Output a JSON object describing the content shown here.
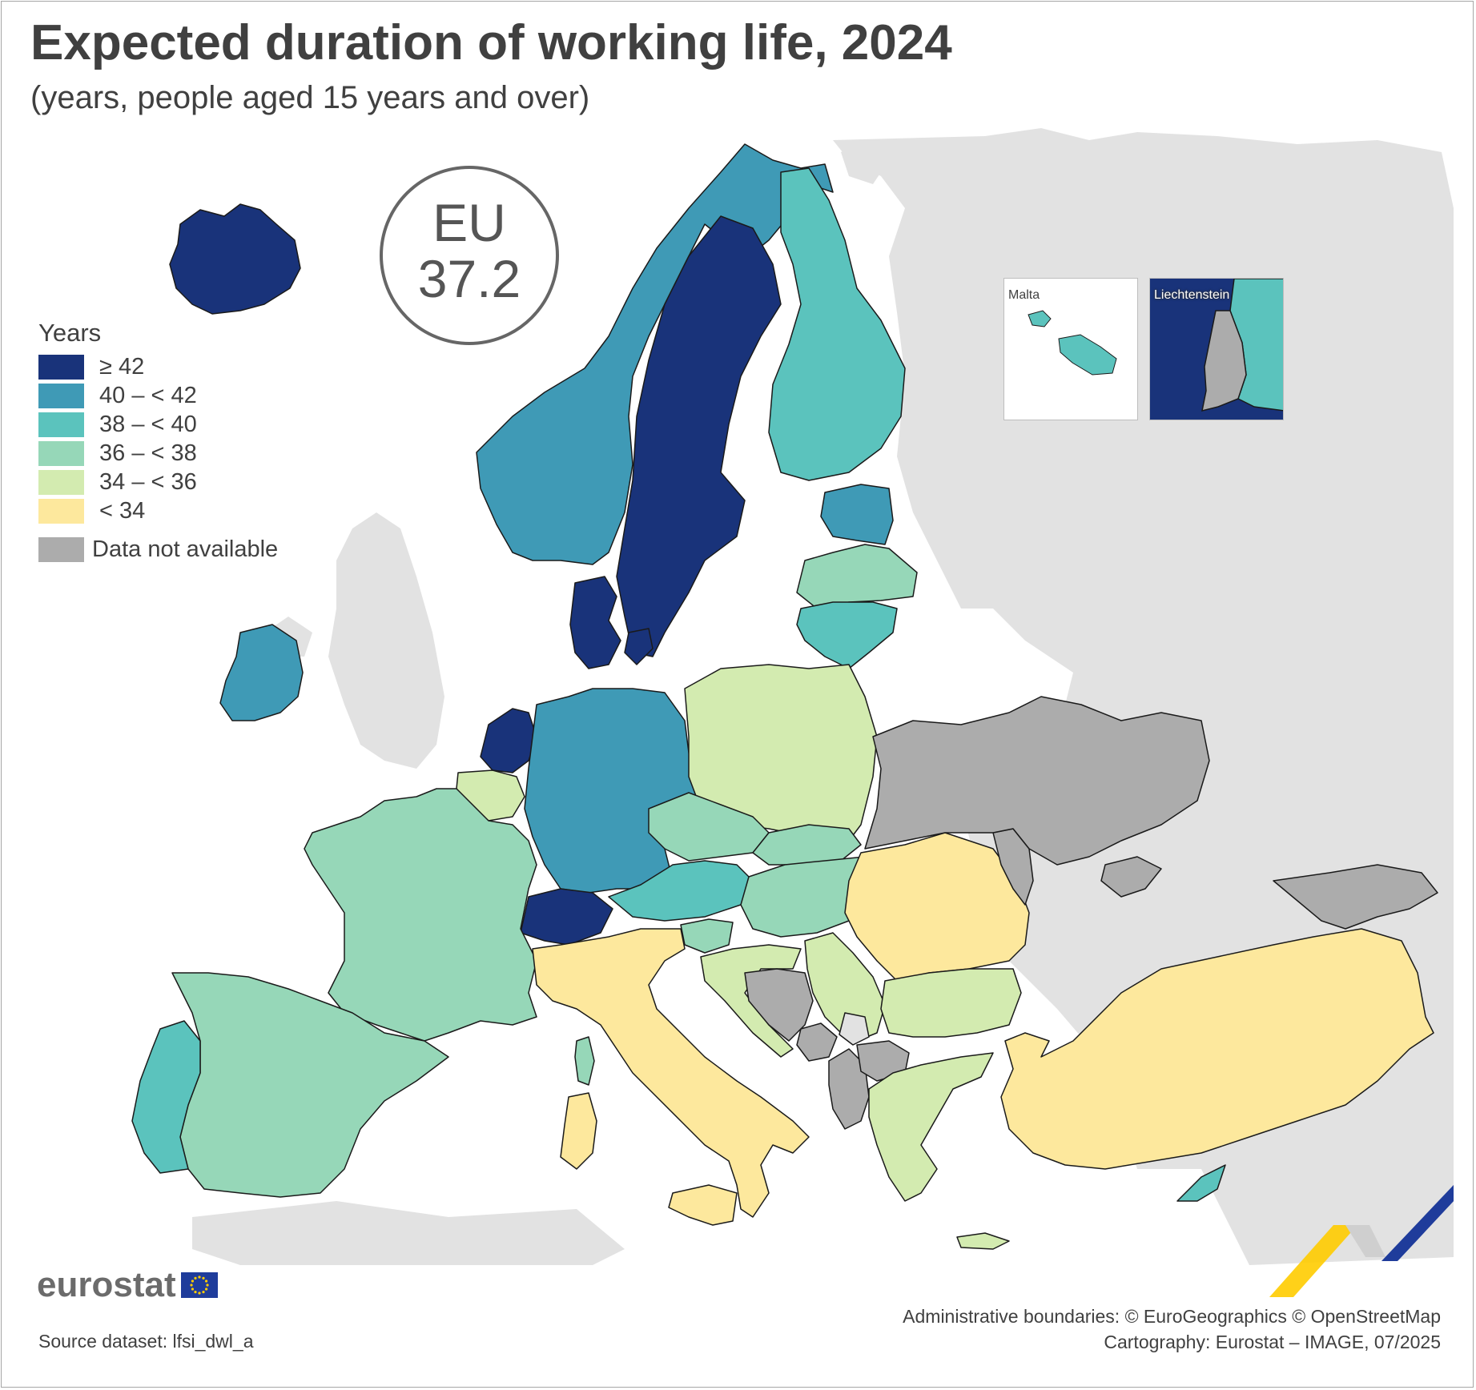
{
  "title": "Expected duration of working life, 2024",
  "subtitle": "(years, people aged 15 years and over)",
  "eu_badge": {
    "label": "EU",
    "value": "37.2"
  },
  "legend": {
    "title": "Years",
    "classes": [
      {
        "label": "≥ 42",
        "color": "#19337a"
      },
      {
        "label": "40 – < 42",
        "color": "#3f9ab6"
      },
      {
        "label": "38 – < 40",
        "color": "#5bc3bd"
      },
      {
        "label": "36 – < 38",
        "color": "#96d7b8"
      },
      {
        "label": "34 – < 36",
        "color": "#d3ebb0"
      },
      {
        "label": "< 34",
        "color": "#fde89d"
      }
    ],
    "not_available": {
      "label": "Data not available",
      "color": "#acacac"
    }
  },
  "colors": {
    "non_reporting": "#e2e2e2",
    "sea": "#ffffff",
    "border": "#1a1a1a"
  },
  "countries": [
    {
      "name": "Iceland",
      "class": "≥ 42"
    },
    {
      "name": "Sweden",
      "class": "≥ 42"
    },
    {
      "name": "Netherlands",
      "class": "≥ 42"
    },
    {
      "name": "Denmark",
      "class": "≥ 42"
    },
    {
      "name": "Switzerland",
      "class": "≥ 42"
    },
    {
      "name": "Norway",
      "class": "40 – < 42"
    },
    {
      "name": "Ireland",
      "class": "40 – < 42"
    },
    {
      "name": "Germany",
      "class": "40 – < 42"
    },
    {
      "name": "Estonia",
      "class": "40 – < 42"
    },
    {
      "name": "Finland",
      "class": "38 – < 40"
    },
    {
      "name": "Lithuania",
      "class": "38 – < 40"
    },
    {
      "name": "Austria",
      "class": "38 – < 40"
    },
    {
      "name": "Portugal",
      "class": "38 – < 40"
    },
    {
      "name": "Malta",
      "class": "38 – < 40"
    },
    {
      "name": "Cyprus",
      "class": "38 – < 40"
    },
    {
      "name": "Latvia",
      "class": "36 – < 38"
    },
    {
      "name": "France",
      "class": "36 – < 38"
    },
    {
      "name": "Spain",
      "class": "36 – < 38"
    },
    {
      "name": "Czechia",
      "class": "36 – < 38"
    },
    {
      "name": "Slovakia",
      "class": "36 – < 38"
    },
    {
      "name": "Hungary",
      "class": "36 – < 38"
    },
    {
      "name": "Slovenia",
      "class": "36 – < 38"
    },
    {
      "name": "Belgium",
      "class": "34 – < 36"
    },
    {
      "name": "Poland",
      "class": "34 – < 36"
    },
    {
      "name": "Croatia",
      "class": "34 – < 36"
    },
    {
      "name": "Serbia",
      "class": "34 – < 36"
    },
    {
      "name": "Bulgaria",
      "class": "34 – < 36"
    },
    {
      "name": "Greece",
      "class": "34 – < 36"
    },
    {
      "name": "North Macedonia",
      "class": "34 – < 36"
    },
    {
      "name": "Italy",
      "class": "< 34"
    },
    {
      "name": "Romania",
      "class": "< 34"
    },
    {
      "name": "Türkiye",
      "class": "< 34"
    },
    {
      "name": "Ukraine",
      "class": "Data not available"
    },
    {
      "name": "Moldova",
      "class": "Data not available"
    },
    {
      "name": "Bosnia and Herzegovina",
      "class": "Data not available"
    },
    {
      "name": "Montenegro",
      "class": "Data not available"
    },
    {
      "name": "Albania",
      "class": "Data not available"
    },
    {
      "name": "Kosovo",
      "class": "Data not available"
    },
    {
      "name": "Georgia",
      "class": "Data not available"
    },
    {
      "name": "Liechtenstein",
      "class": "Data not available"
    }
  ],
  "insets": {
    "malta_label": "Malta",
    "liechtenstein_label": "Liechtenstein"
  },
  "logo_text": "eurostat",
  "source": "Source dataset: lfsi_dwl_a",
  "credits": [
    "Administrative boundaries: © EuroGeographics © OpenStreetMap",
    "Cartography: Eurostat – IMAGE, 07/2025"
  ]
}
